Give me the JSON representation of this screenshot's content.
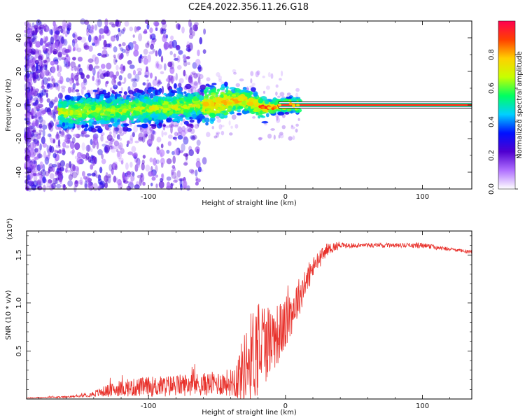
{
  "figure_title": "C2E4.2022.356.11.26.G18",
  "chart_data": [
    {
      "type": "heatmap",
      "title": "C2E4.2022.356.11.26.G18",
      "xlabel": "Height of straight line (km)",
      "ylabel": "Frequency (Hz)",
      "xlim": [
        -189,
        136
      ],
      "ylim": [
        -50,
        50
      ],
      "x_ticks": [
        -100,
        0,
        100
      ],
      "x_tick_labels": [
        "-100",
        "0",
        "100"
      ],
      "y_ticks": [
        -40,
        -20,
        0,
        20,
        40
      ],
      "y_tick_labels": [
        "-40",
        "-20",
        "0",
        "20",
        "40"
      ],
      "colorbar": {
        "label": "Normalized spectral amplitude",
        "range": [
          0,
          1
        ],
        "ticks": [
          0.0,
          0.2,
          0.4,
          0.6,
          0.8
        ],
        "tick_labels": [
          "0.0",
          "0.2",
          "0.4",
          "0.6",
          "0.8"
        ],
        "colormap": [
          "#ffffff",
          "#b070ff",
          "#5000d0",
          "#0010ff",
          "#00d0ff",
          "#00ff60",
          "#c8ff00",
          "#ffd000",
          "#ff4000",
          "#ff0050"
        ]
      },
      "ridge": {
        "description_points": [
          {
            "x": -160,
            "f": -4
          },
          {
            "x": -120,
            "f": -3
          },
          {
            "x": -80,
            "f": -1
          },
          {
            "x": -50,
            "f": 1
          },
          {
            "x": -30,
            "f": 3
          },
          {
            "x": -15,
            "f": -2
          },
          {
            "x": 0,
            "f": 0
          },
          {
            "x": 136,
            "f": 0
          }
        ],
        "steady_tone_start_km": 0
      },
      "grid": false
    },
    {
      "type": "line",
      "xlabel": "Height of straight line (km)",
      "ylabel": "SNR (10 * v/v)",
      "y_multiplier": "(x10⁴)",
      "xlim": [
        -189,
        136
      ],
      "ylim": [
        0,
        1.75
      ],
      "x_ticks": [
        -100,
        0,
        100
      ],
      "x_tick_labels": [
        "-100",
        "0",
        "100"
      ],
      "y_ticks": [
        0.5,
        1.0,
        1.5
      ],
      "y_tick_labels": [
        "0.5",
        "1.0",
        "1.5"
      ],
      "series": [
        {
          "color": "#e8302a",
          "envelope": {
            "x": [
              -189,
              -160,
              -150,
              -140,
              -130,
              -120,
              -110,
              -100,
              -90,
              -80,
              -70,
              -60,
              -50,
              -40,
              -35,
              -30,
              -25,
              -20,
              -15,
              -10,
              -5,
              0,
              5,
              10,
              20,
              30,
              40,
              60,
              80,
              100,
              120,
              136
            ],
            "base": [
              0.01,
              0.02,
              0.03,
              0.05,
              0.08,
              0.1,
              0.11,
              0.12,
              0.12,
              0.13,
              0.14,
              0.14,
              0.15,
              0.16,
              0.2,
              0.3,
              0.4,
              0.5,
              0.55,
              0.6,
              0.65,
              0.75,
              0.9,
              1.05,
              1.35,
              1.55,
              1.6,
              1.6,
              1.6,
              1.6,
              1.56,
              1.53
            ],
            "spread": [
              0.005,
              0.01,
              0.015,
              0.04,
              0.08,
              0.1,
              0.12,
              0.13,
              0.14,
              0.14,
              0.15,
              0.15,
              0.16,
              0.18,
              0.3,
              0.45,
              0.6,
              0.7,
              0.55,
              0.45,
              0.4,
              0.35,
              0.3,
              0.25,
              0.15,
              0.08,
              0.05,
              0.04,
              0.04,
              0.05,
              0.03,
              0.03
            ]
          }
        }
      ],
      "grid": false
    }
  ]
}
